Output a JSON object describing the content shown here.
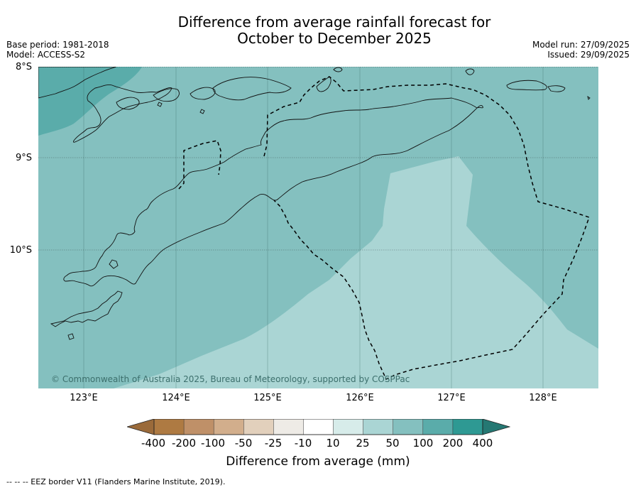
{
  "title_line1": "Difference from average rainfall forecast for",
  "title_line2": "October to December 2025",
  "base_period": "Base period: 1981-2018",
  "model": "Model: ACCESS-S2",
  "model_run": "Model run: 27/09/2025",
  "issued": "Issued: 29/09/2025",
  "copyright": "© Commonwealth of Australia 2025, Bureau of Meteorology, supported by COSPPac",
  "footnote": "--  --  -- EEZ border V11 (Flanders Marine Institute, 2019).",
  "map": {
    "lat_labels": [
      "8°S",
      "9°S",
      "10°S"
    ],
    "lon_labels": [
      "123°E",
      "124°E",
      "125°E",
      "126°E",
      "127°E",
      "128°E"
    ],
    "region": "Timor Island",
    "fill_categories": [
      "25 to 50 mm",
      "50 to 100 mm",
      "100 to 200 mm"
    ]
  },
  "legend": {
    "title": "Difference from average (mm)",
    "tick_labels": [
      "-400",
      "-200",
      "-100",
      "-50",
      "-25",
      "-10",
      "10",
      "25",
      "50",
      "100",
      "200",
      "400"
    ],
    "colors": [
      "#9a6a3a",
      "#ae7a42",
      "#bf9068",
      "#d2ae8c",
      "#e2d0bc",
      "#eeebe6",
      "#ffffff",
      "#d7ecea",
      "#aad5d4",
      "#84c0bf",
      "#5aacaa",
      "#2e9993",
      "#257873"
    ]
  }
}
